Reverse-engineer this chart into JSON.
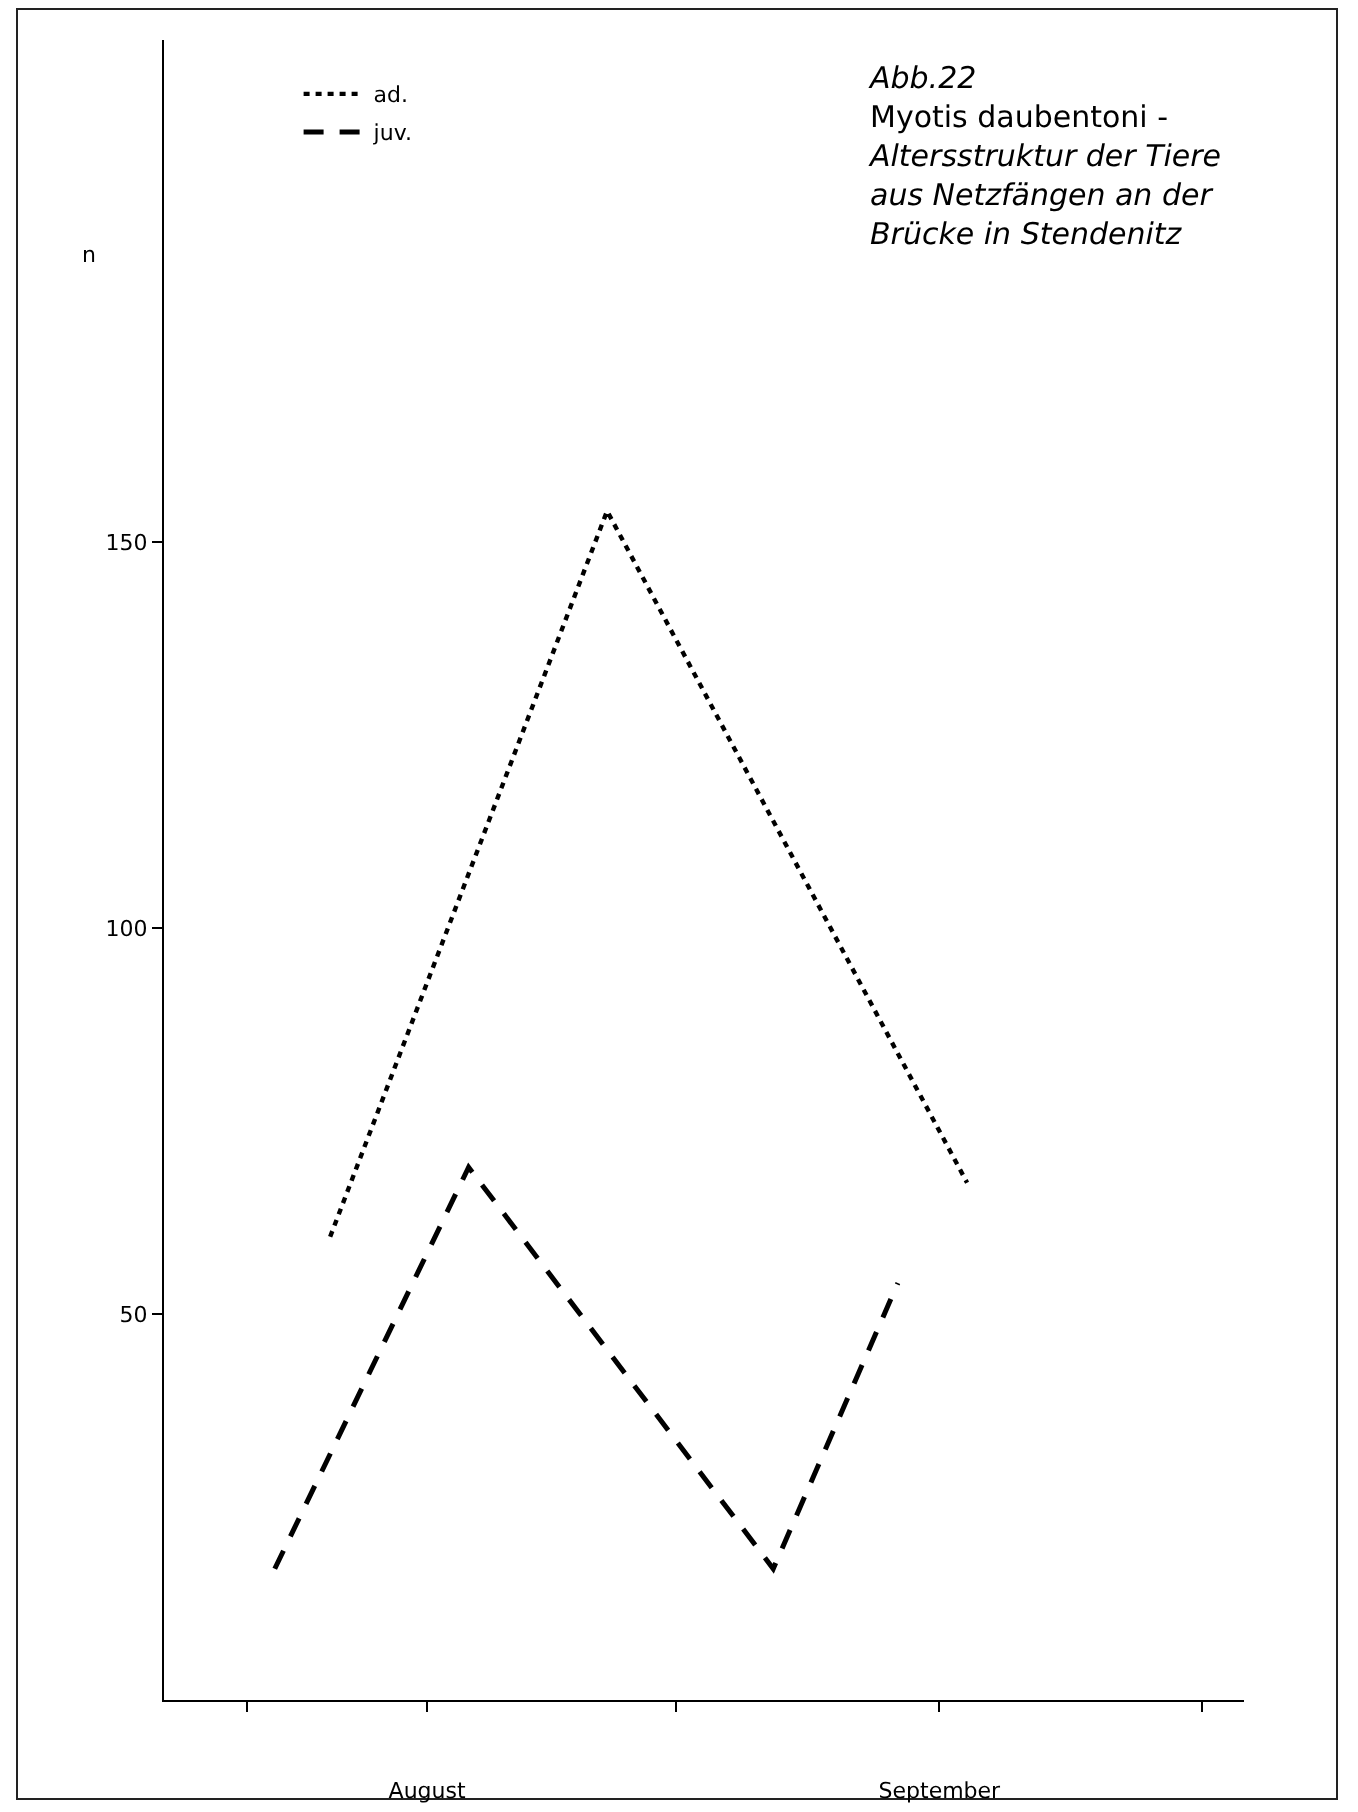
{
  "chart_data": {
    "type": "line",
    "title": "Abb.22",
    "subtitle": "Myotis daubentoni -",
    "annotations": [
      "Altersstruktur der Tiere aus Netzfängen an der Brücke in Stendenitz"
    ],
    "ylabel": "n",
    "ylim": [
      0,
      215
    ],
    "yticks": [
      50,
      100,
      150
    ],
    "xlim": [
      "--07-26",
      "--10-12"
    ],
    "xticks": [
      {
        "value": "--08-01",
        "label": null
      },
      {
        "value": "--08-14",
        "label": "August"
      },
      {
        "value": "--09-01",
        "label": null
      },
      {
        "value": "--09-20",
        "label": "September"
      },
      {
        "value": "--10-09",
        "label": null
      }
    ],
    "series": [
      {
        "name": "ad.",
        "color": "#000000",
        "line_style": "dotted",
        "x": [
          "--08-07",
          "--08-27",
          "--09-22"
        ],
        "values": [
          60,
          154,
          67
        ]
      },
      {
        "name": "juv.",
        "color": "#000000",
        "line_style": "dashed",
        "x": [
          "--08-03",
          "--08-17",
          "--09-08",
          "--09-17"
        ],
        "values": [
          17,
          69,
          17,
          54
        ]
      }
    ],
    "grid": false,
    "legend": "top left",
    "marker": "none"
  }
}
